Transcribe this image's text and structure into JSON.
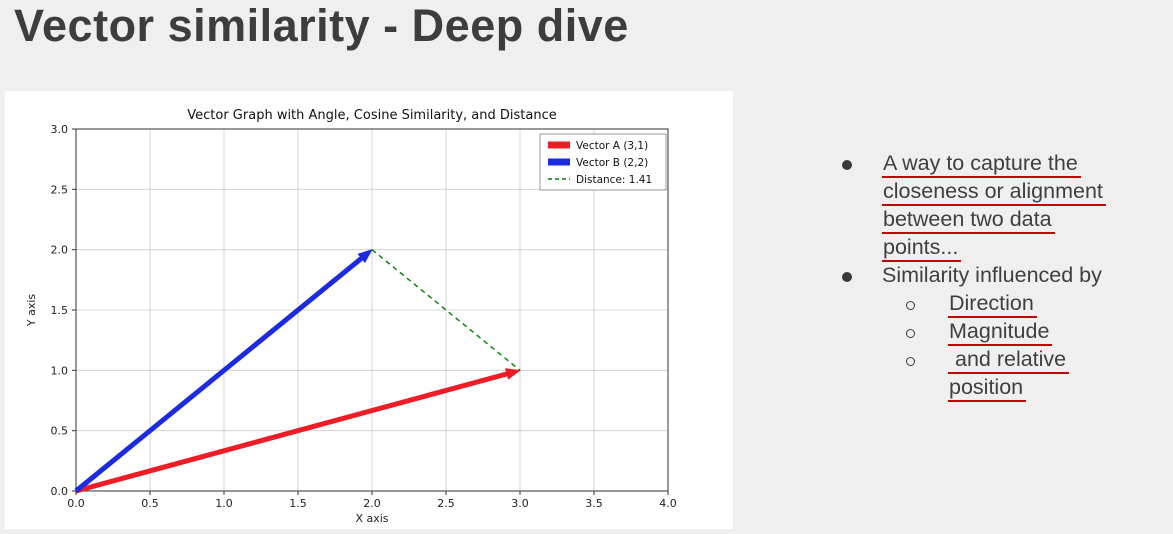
{
  "slide": {
    "title": "Vector similarity - Deep dive"
  },
  "colors": {
    "underline_red": "#c00404",
    "title_gray": "#3d3d3d",
    "vector_a_red": "#ee1c25",
    "vector_b_blue": "#1c2bdf",
    "distance_green": "#008000"
  },
  "bullets": [
    {
      "level": 1,
      "lines": [
        {
          "text": "A way to capture the",
          "underline": true
        },
        {
          "text": "closeness or alignment",
          "underline": true
        },
        {
          "text": "between two data",
          "underline": true
        },
        {
          "text": "points...",
          "underline": true
        }
      ]
    },
    {
      "level": 1,
      "lines": [
        {
          "text": "Similarity influenced by",
          "underline": false
        }
      ]
    },
    {
      "level": 2,
      "lines": [
        {
          "text": "Direction",
          "underline": true
        }
      ]
    },
    {
      "level": 2,
      "lines": [
        {
          "text": "Magnitude",
          "underline": true
        }
      ]
    },
    {
      "level": 2,
      "lines": [
        {
          "text": " and relative",
          "underline": true
        },
        {
          "text": "position",
          "underline": true
        }
      ]
    }
  ],
  "chart_data": {
    "type": "line",
    "title": "Vector Graph with Angle, Cosine Similarity, and Distance",
    "xlabel": "X axis",
    "ylabel": "Y axis",
    "xlim": [
      0.0,
      4.0
    ],
    "ylim": [
      0.0,
      3.0
    ],
    "xticks": [
      0.0,
      0.5,
      1.0,
      1.5,
      2.0,
      2.5,
      3.0,
      3.5,
      4.0
    ],
    "yticks": [
      0.0,
      0.5,
      1.0,
      1.5,
      2.0,
      2.5,
      3.0
    ],
    "grid": true,
    "legend_position": "upper right",
    "series": [
      {
        "id": "vector-a",
        "name": "Vector A (3,1)",
        "style": "arrow",
        "color": "#ee1c25",
        "points": [
          [
            0,
            0
          ],
          [
            3,
            1
          ]
        ]
      },
      {
        "id": "vector-b",
        "name": "Vector B (2,2)",
        "style": "arrow",
        "color": "#1c2bdf",
        "points": [
          [
            0,
            0
          ],
          [
            2,
            2
          ]
        ]
      },
      {
        "id": "distance",
        "name": "Distance: 1.41",
        "style": "dashed",
        "color": "#008000",
        "points": [
          [
            2,
            2
          ],
          [
            3,
            1
          ]
        ]
      }
    ]
  }
}
